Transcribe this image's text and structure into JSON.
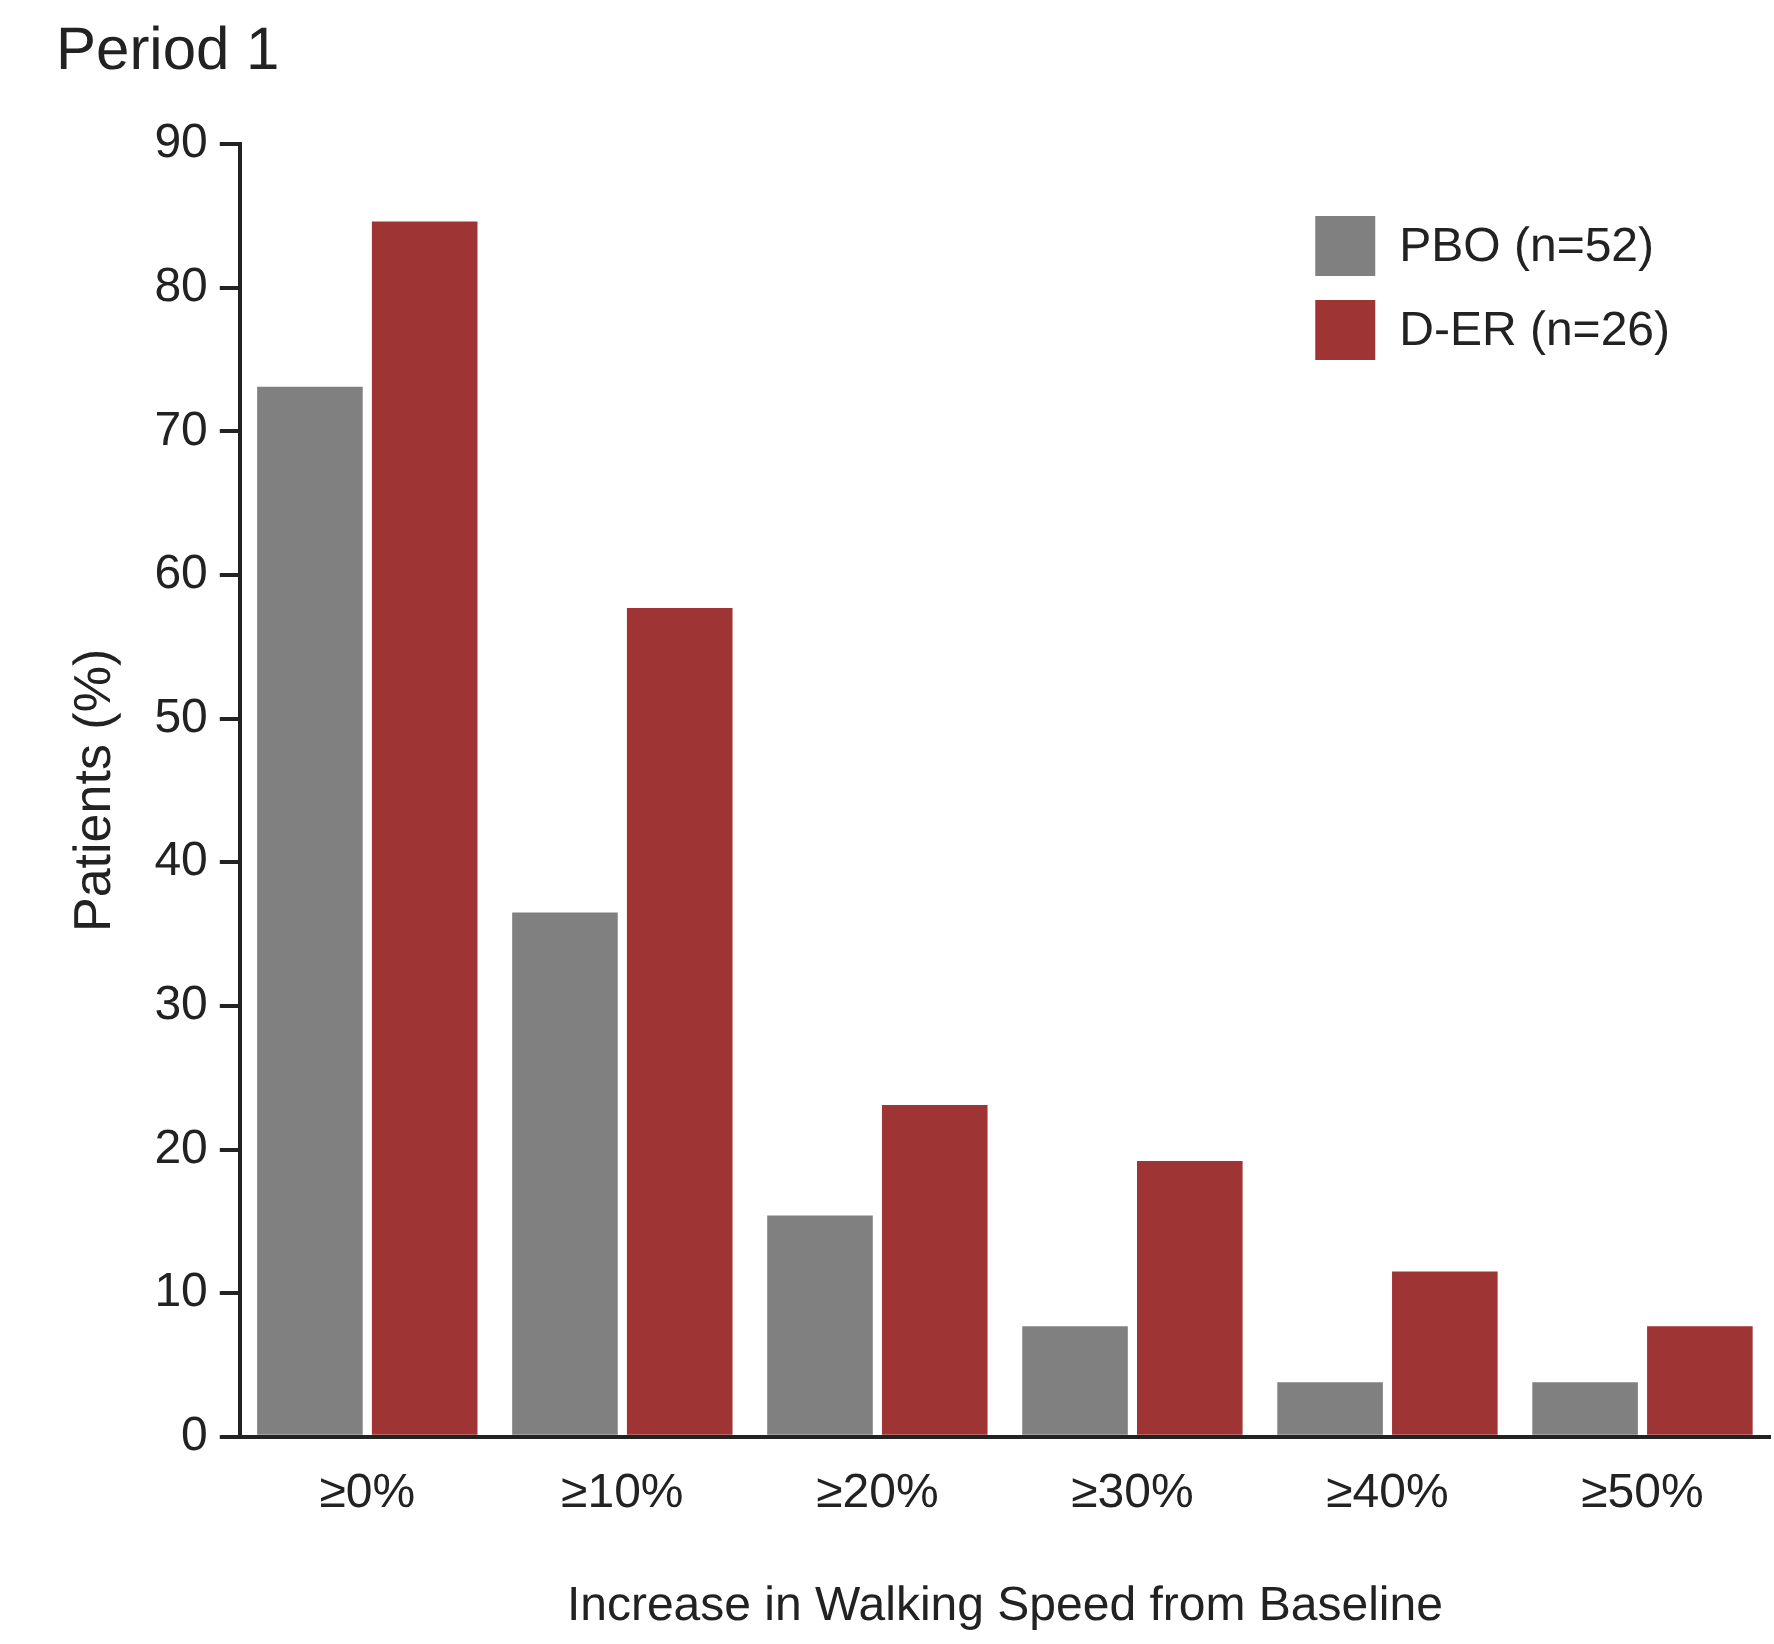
{
  "chart_data": {
    "type": "bar",
    "title": "Period 1",
    "xlabel": "Increase in Walking Speed from Baseline",
    "ylabel": "Patients (%)",
    "categories": [
      "≥0%",
      "≥10%",
      "≥20%",
      "≥30%",
      "≥40%",
      "≥50%"
    ],
    "series": [
      {
        "name": "PBO (n=52)",
        "color": "#808080",
        "values": [
          73.1,
          36.5,
          15.4,
          7.7,
          3.8,
          3.8
        ]
      },
      {
        "name": "D-ER (n=26)",
        "color": "#9e3433",
        "values": [
          84.6,
          57.7,
          23.1,
          19.2,
          11.5,
          7.7
        ]
      }
    ],
    "ylim": [
      0,
      90
    ],
    "yticks": [
      0,
      10,
      20,
      30,
      40,
      50,
      60,
      70,
      80,
      90
    ],
    "grid": false,
    "legend": "top right"
  }
}
